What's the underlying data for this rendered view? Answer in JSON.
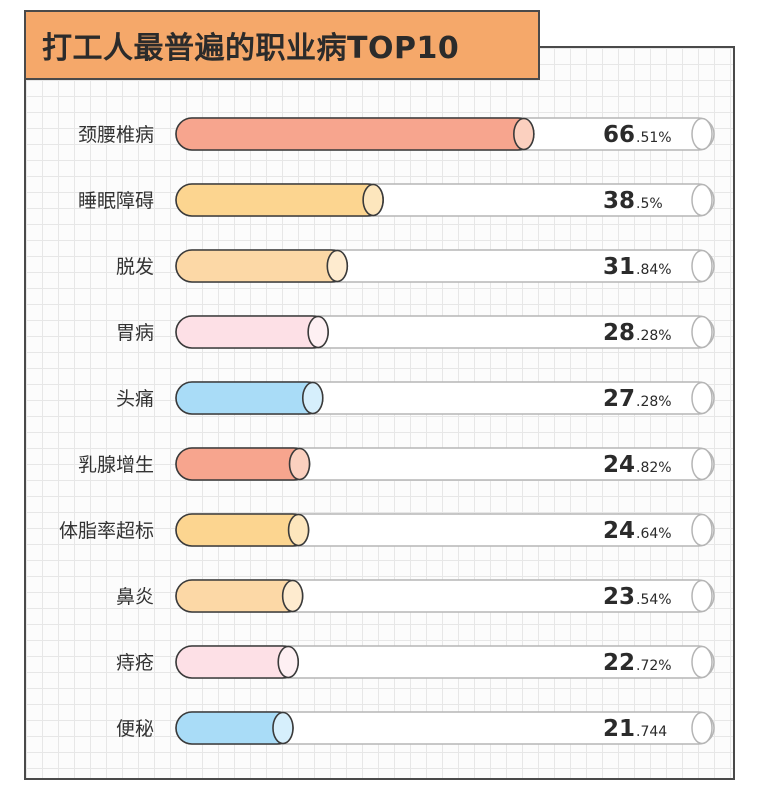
{
  "title": "打工人最普遍的职业病TOP10",
  "chart_data": {
    "type": "bar",
    "orientation": "horizontal",
    "title": "打工人最普遍的职业病TOP10",
    "xlim": [
      0,
      100
    ],
    "grid": true,
    "categories": [
      "颈腰椎病",
      "睡眠障碍",
      "脱发",
      "胃病",
      "头痛",
      "乳腺增生",
      "体脂率超标",
      "鼻炎",
      "痔疮",
      "便秘"
    ],
    "values": [
      66.51,
      38.5,
      31.84,
      28.28,
      27.28,
      24.82,
      24.64,
      23.54,
      22.72,
      21.744
    ],
    "labels": [
      {
        "int": "66",
        "frac": ".51%"
      },
      {
        "int": "38",
        "frac": ".5%"
      },
      {
        "int": "31",
        "frac": ".84%"
      },
      {
        "int": "28",
        "frac": ".28%"
      },
      {
        "int": "27",
        "frac": ".28%"
      },
      {
        "int": "24",
        "frac": ".82%"
      },
      {
        "int": "24",
        "frac": ".64%"
      },
      {
        "int": "23",
        "frac": ".54%"
      },
      {
        "int": "22",
        "frac": ".72%"
      },
      {
        "int": "21",
        "frac": ".744"
      }
    ],
    "colors": [
      {
        "fill": "#f7a58e",
        "cap": "#fbd0bf"
      },
      {
        "fill": "#fcd590",
        "cap": "#fde6bd"
      },
      {
        "fill": "#fcd8a6",
        "cap": "#feebcf"
      },
      {
        "fill": "#fde0e6",
        "cap": "#fef0f3"
      },
      {
        "fill": "#a9dcf7",
        "cap": "#d6effc"
      },
      {
        "fill": "#f7a58e",
        "cap": "#fbd0bf"
      },
      {
        "fill": "#fcd590",
        "cap": "#fde6bd"
      },
      {
        "fill": "#fcd8a6",
        "cap": "#feebcf"
      },
      {
        "fill": "#fde0e6",
        "cap": "#fef0f3"
      },
      {
        "fill": "#a9dcf7",
        "cap": "#d6effc"
      }
    ],
    "track_color": "#ffffff",
    "outline_color": "#3a3a3a",
    "track_outline_color": "#b5b5b5"
  }
}
